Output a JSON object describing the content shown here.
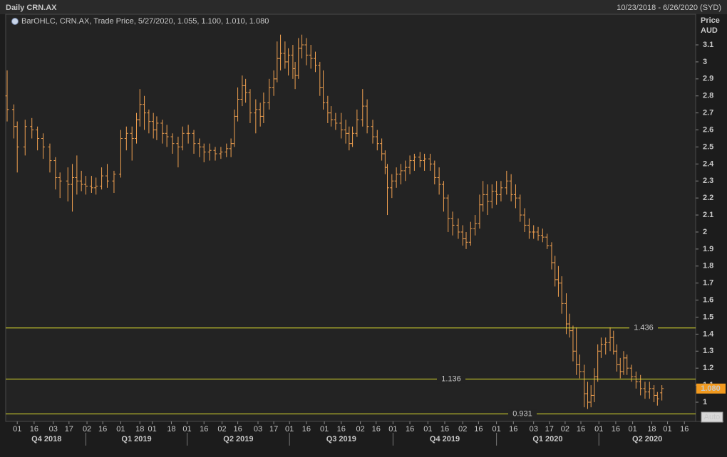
{
  "chart_data": {
    "type": "ohlc",
    "title": "Daily CRN.AX",
    "date_range": "10/23/2018 - 6/26/2020 (SYD)",
    "y_axis_label": [
      "Price",
      "AUD"
    ],
    "auto_button": "Auto",
    "xlim": [
      0,
      612
    ],
    "xticks": [
      {
        "value": 9,
        "label": "01"
      },
      {
        "value": 24,
        "label": "16"
      },
      {
        "value": 41,
        "label": "03"
      },
      {
        "value": 55,
        "label": "17"
      },
      {
        "value": 71,
        "label": "02"
      },
      {
        "value": 85,
        "label": "16"
      },
      {
        "value": 101,
        "label": "01"
      },
      {
        "value": 118,
        "label": "18"
      },
      {
        "value": 129,
        "label": "01"
      },
      {
        "value": 146,
        "label": "18"
      },
      {
        "value": 160,
        "label": "01"
      },
      {
        "value": 175,
        "label": "16"
      },
      {
        "value": 191,
        "label": "02"
      },
      {
        "value": 205,
        "label": "16"
      },
      {
        "value": 223,
        "label": "03"
      },
      {
        "value": 237,
        "label": "17"
      },
      {
        "value": 251,
        "label": "01"
      },
      {
        "value": 266,
        "label": "16"
      },
      {
        "value": 282,
        "label": "01"
      },
      {
        "value": 297,
        "label": "16"
      },
      {
        "value": 314,
        "label": "02"
      },
      {
        "value": 328,
        "label": "16"
      },
      {
        "value": 343,
        "label": "01"
      },
      {
        "value": 358,
        "label": "16"
      },
      {
        "value": 374,
        "label": "01"
      },
      {
        "value": 389,
        "label": "16"
      },
      {
        "value": 405,
        "label": "02"
      },
      {
        "value": 419,
        "label": "16"
      },
      {
        "value": 435,
        "label": "01"
      },
      {
        "value": 450,
        "label": "16"
      },
      {
        "value": 468,
        "label": "03"
      },
      {
        "value": 482,
        "label": "17"
      },
      {
        "value": 496,
        "label": "02"
      },
      {
        "value": 510,
        "label": "16"
      },
      {
        "value": 526,
        "label": "01"
      },
      {
        "value": 541,
        "label": "16"
      },
      {
        "value": 556,
        "label": "01"
      },
      {
        "value": 573,
        "label": "18"
      },
      {
        "value": 587,
        "label": "01"
      },
      {
        "value": 602,
        "label": "16"
      }
    ],
    "quarter_ticks": [
      {
        "value": 0,
        "label": "Q4 2018"
      },
      {
        "value": 70,
        "label": "Q1 2019"
      },
      {
        "value": 160,
        "label": "Q2 2019"
      },
      {
        "value": 251,
        "label": "Q3 2019"
      },
      {
        "value": 343,
        "label": "Q4 2019"
      },
      {
        "value": 435,
        "label": "Q1 2020"
      },
      {
        "value": 526,
        "label": "Q2 2020"
      }
    ],
    "ylim": [
      0.887,
      3.28
    ],
    "yticks": [
      1,
      1.1,
      1.2,
      1.3,
      1.4,
      1.5,
      1.6,
      1.7,
      1.8,
      1.9,
      2,
      2.1,
      2.2,
      2.3,
      2.4,
      2.5,
      2.6,
      2.7,
      2.8,
      2.9,
      3,
      3.1
    ],
    "last_price": {
      "value": 1.08,
      "label": "1.080"
    },
    "hlines": [
      {
        "value": 1.436,
        "label": "1.436",
        "color": "#e6e62e"
      },
      {
        "value": 1.136,
        "label": "1.136",
        "color": "#e6e62e"
      },
      {
        "value": 0.931,
        "label": "0.931",
        "color": "#e6e62e"
      }
    ],
    "x": [
      0,
      6,
      9,
      16,
      22,
      27,
      32,
      38,
      43,
      47,
      54,
      58,
      62,
      66,
      70,
      75,
      79,
      84,
      89,
      95,
      101,
      106,
      111,
      115,
      118,
      122,
      126,
      130,
      133,
      138,
      142,
      147,
      152,
      156,
      161,
      166,
      171,
      175,
      180,
      185,
      190,
      195,
      199,
      202,
      205,
      209,
      212,
      216,
      221,
      225,
      228,
      233,
      237,
      240,
      243,
      247,
      250,
      254,
      256,
      259,
      262,
      266,
      270,
      274,
      278,
      281,
      285,
      288,
      292,
      297,
      301,
      304,
      307,
      311,
      316,
      320,
      325,
      329,
      333,
      336,
      338,
      342,
      346,
      350,
      354,
      358,
      362,
      367,
      371,
      376,
      380,
      384,
      388,
      392,
      396,
      401,
      405,
      408,
      412,
      416,
      420,
      423,
      427,
      431,
      435,
      439,
      444,
      448,
      452,
      456,
      460,
      464,
      468,
      472,
      476,
      480,
      484,
      487,
      490,
      493,
      497,
      500,
      503,
      506,
      509,
      513,
      516,
      519,
      522,
      525,
      528,
      532,
      536,
      539,
      542,
      545,
      548,
      551,
      555,
      559,
      563,
      567,
      571,
      575,
      578,
      582
    ],
    "series": [
      {
        "name": "BarOHLC, CRN.AX, Trade Price, 5/27/2020, 1.055, 1.100, 1.010, 1.080",
        "color": "#f0a050",
        "open": [
          2.8,
          2.72,
          2.62,
          2.5,
          2.62,
          2.6,
          2.55,
          2.5,
          2.42,
          2.32,
          2.3,
          2.28,
          2.32,
          2.3,
          2.28,
          2.27,
          2.26,
          2.27,
          2.33,
          2.3,
          2.34,
          2.55,
          2.58,
          2.55,
          2.66,
          2.75,
          2.7,
          2.65,
          2.6,
          2.64,
          2.58,
          2.56,
          2.52,
          2.5,
          2.58,
          2.58,
          2.52,
          2.5,
          2.47,
          2.48,
          2.46,
          2.47,
          2.49,
          2.52,
          2.68,
          2.78,
          2.86,
          2.82,
          2.7,
          2.72,
          2.68,
          2.76,
          2.85,
          2.9,
          3.02,
          3.05,
          3.0,
          3.04,
          2.96,
          2.92,
          3.08,
          3.1,
          3.04,
          3.02,
          2.98,
          2.85,
          2.76,
          2.7,
          2.66,
          2.64,
          2.6,
          2.58,
          2.52,
          2.58,
          2.66,
          2.74,
          2.62,
          2.56,
          2.52,
          2.46,
          2.38,
          2.26,
          2.3,
          2.34,
          2.36,
          2.38,
          2.42,
          2.44,
          2.42,
          2.43,
          2.4,
          2.32,
          2.28,
          2.2,
          2.08,
          2.04,
          2.0,
          1.96,
          1.94,
          2.02,
          2.05,
          2.16,
          2.22,
          2.18,
          2.24,
          2.22,
          2.26,
          2.3,
          2.22,
          2.2,
          2.1,
          2.04,
          2.0,
          2.0,
          1.98,
          1.97,
          1.92,
          1.82,
          1.72,
          1.7,
          1.58,
          1.46,
          1.42,
          1.3,
          1.22,
          1.18,
          1.05,
          1.0,
          1.04,
          1.15,
          1.3,
          1.34,
          1.35,
          1.38,
          1.3,
          1.22,
          1.18,
          1.26,
          1.2,
          1.15,
          1.12,
          1.08,
          1.06,
          1.08,
          1.04,
          1.055
        ],
        "high": [
          2.95,
          2.75,
          2.65,
          2.66,
          2.67,
          2.62,
          2.58,
          2.52,
          2.44,
          2.35,
          2.38,
          2.4,
          2.45,
          2.36,
          2.33,
          2.33,
          2.32,
          2.38,
          2.4,
          2.36,
          2.6,
          2.62,
          2.62,
          2.7,
          2.84,
          2.8,
          2.72,
          2.7,
          2.68,
          2.66,
          2.63,
          2.58,
          2.56,
          2.62,
          2.63,
          2.6,
          2.55,
          2.52,
          2.52,
          2.5,
          2.5,
          2.52,
          2.55,
          2.72,
          2.85,
          2.92,
          2.9,
          2.84,
          2.78,
          2.76,
          2.82,
          2.9,
          2.95,
          3.12,
          3.16,
          3.12,
          3.08,
          3.1,
          3.0,
          3.14,
          3.16,
          3.14,
          3.1,
          3.06,
          3.0,
          2.95,
          2.8,
          2.74,
          2.7,
          2.7,
          2.66,
          2.62,
          2.62,
          2.72,
          2.84,
          2.78,
          2.66,
          2.6,
          2.55,
          2.48,
          2.4,
          2.34,
          2.38,
          2.4,
          2.42,
          2.45,
          2.46,
          2.47,
          2.46,
          2.46,
          2.42,
          2.38,
          2.3,
          2.22,
          2.12,
          2.08,
          2.04,
          2.0,
          2.06,
          2.1,
          2.22,
          2.3,
          2.28,
          2.28,
          2.3,
          2.3,
          2.36,
          2.34,
          2.28,
          2.22,
          2.14,
          2.08,
          2.04,
          2.03,
          2.02,
          1.99,
          1.94,
          1.86,
          1.8,
          1.74,
          1.64,
          1.52,
          1.45,
          1.44,
          1.28,
          1.22,
          1.12,
          1.1,
          1.2,
          1.34,
          1.38,
          1.38,
          1.44,
          1.42,
          1.34,
          1.26,
          1.3,
          1.28,
          1.22,
          1.18,
          1.16,
          1.12,
          1.12,
          1.1,
          1.06,
          1.1
        ],
        "low": [
          2.65,
          2.55,
          2.35,
          2.45,
          2.55,
          2.48,
          2.43,
          2.35,
          2.25,
          2.2,
          2.18,
          2.12,
          2.22,
          2.24,
          2.22,
          2.23,
          2.22,
          2.25,
          2.26,
          2.23,
          2.32,
          2.48,
          2.42,
          2.52,
          2.62,
          2.6,
          2.58,
          2.55,
          2.54,
          2.52,
          2.5,
          2.46,
          2.38,
          2.48,
          2.52,
          2.46,
          2.44,
          2.41,
          2.42,
          2.42,
          2.43,
          2.44,
          2.44,
          2.5,
          2.65,
          2.74,
          2.76,
          2.64,
          2.58,
          2.62,
          2.64,
          2.72,
          2.8,
          2.88,
          2.95,
          2.96,
          2.92,
          2.9,
          2.84,
          2.9,
          3.02,
          2.98,
          2.96,
          2.94,
          2.8,
          2.72,
          2.64,
          2.62,
          2.6,
          2.55,
          2.52,
          2.48,
          2.5,
          2.56,
          2.62,
          2.58,
          2.52,
          2.48,
          2.42,
          2.34,
          2.1,
          2.2,
          2.26,
          2.28,
          2.3,
          2.34,
          2.36,
          2.38,
          2.36,
          2.36,
          2.28,
          2.22,
          2.12,
          2.0,
          1.98,
          1.96,
          1.92,
          1.9,
          1.92,
          1.98,
          2.02,
          2.12,
          2.1,
          2.14,
          2.16,
          2.18,
          2.22,
          2.18,
          2.14,
          2.06,
          2.0,
          1.96,
          1.96,
          1.95,
          1.94,
          1.9,
          1.78,
          1.68,
          1.62,
          1.52,
          1.4,
          1.38,
          1.24,
          1.16,
          1.14,
          0.97,
          0.96,
          0.97,
          1.0,
          1.12,
          1.26,
          1.28,
          1.3,
          1.28,
          1.18,
          1.14,
          1.16,
          1.16,
          1.12,
          1.08,
          1.04,
          1.02,
          1.02,
          1.0,
          0.98,
          1.01
        ],
        "close": [
          2.72,
          2.62,
          2.5,
          2.62,
          2.6,
          2.55,
          2.5,
          2.42,
          2.32,
          2.3,
          2.28,
          2.32,
          2.3,
          2.28,
          2.27,
          2.26,
          2.27,
          2.33,
          2.3,
          2.34,
          2.55,
          2.58,
          2.55,
          2.66,
          2.75,
          2.7,
          2.65,
          2.6,
          2.64,
          2.58,
          2.56,
          2.52,
          2.5,
          2.58,
          2.58,
          2.52,
          2.5,
          2.47,
          2.48,
          2.46,
          2.47,
          2.49,
          2.52,
          2.68,
          2.78,
          2.86,
          2.82,
          2.7,
          2.72,
          2.68,
          2.76,
          2.85,
          2.9,
          3.02,
          3.05,
          3.0,
          3.04,
          2.96,
          2.92,
          3.08,
          3.1,
          3.04,
          3.02,
          2.98,
          2.85,
          2.76,
          2.7,
          2.66,
          2.64,
          2.6,
          2.58,
          2.52,
          2.58,
          2.66,
          2.74,
          2.62,
          2.56,
          2.52,
          2.46,
          2.38,
          2.26,
          2.3,
          2.34,
          2.36,
          2.38,
          2.42,
          2.44,
          2.42,
          2.43,
          2.4,
          2.32,
          2.28,
          2.2,
          2.08,
          2.04,
          2.0,
          1.96,
          1.94,
          2.02,
          2.05,
          2.16,
          2.22,
          2.18,
          2.24,
          2.22,
          2.26,
          2.3,
          2.22,
          2.2,
          2.1,
          2.04,
          2.0,
          2.0,
          1.98,
          1.97,
          1.92,
          1.82,
          1.72,
          1.7,
          1.58,
          1.46,
          1.42,
          1.3,
          1.22,
          1.18,
          1.05,
          1.0,
          1.04,
          1.15,
          1.3,
          1.34,
          1.35,
          1.38,
          1.3,
          1.22,
          1.18,
          1.26,
          1.2,
          1.15,
          1.12,
          1.08,
          1.06,
          1.08,
          1.04,
          1.02,
          1.08
        ]
      }
    ]
  }
}
